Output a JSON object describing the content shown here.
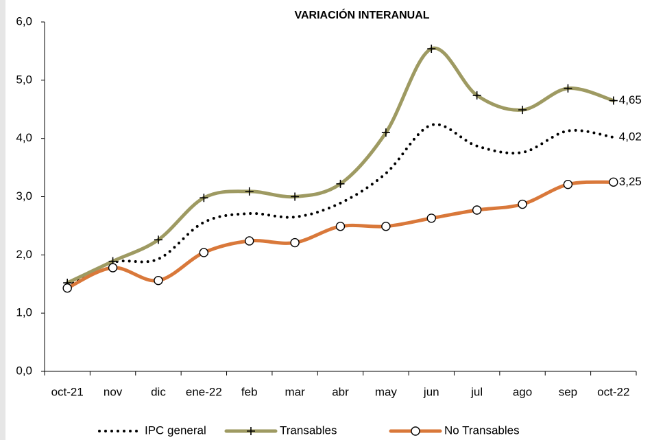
{
  "chart_data": {
    "type": "line",
    "title": "VARIACIÓN INTERANUAL",
    "categories": [
      "oct-21",
      "nov",
      "dic",
      "ene-22",
      "feb",
      "mar",
      "abr",
      "may",
      "jun",
      "jul",
      "ago",
      "sep",
      "oct-22"
    ],
    "series": [
      {
        "name": "IPC general",
        "color": "#000000",
        "style": "dotted",
        "values": [
          1.47,
          1.87,
          1.93,
          2.56,
          2.71,
          2.65,
          2.89,
          3.4,
          4.23,
          3.87,
          3.76,
          4.13,
          4.02
        ],
        "value_labels": [
          null,
          null,
          null,
          null,
          null,
          null,
          null,
          null,
          null,
          null,
          null,
          null,
          "4,02"
        ],
        "label_color": "#000000"
      },
      {
        "name": "Transables",
        "color": "#9e9a62",
        "marker": "plus",
        "values": [
          1.52,
          1.89,
          2.26,
          2.98,
          3.09,
          3.0,
          3.22,
          4.1,
          5.54,
          4.74,
          4.49,
          4.86,
          4.65
        ],
        "value_labels": [
          null,
          null,
          null,
          null,
          null,
          null,
          null,
          null,
          null,
          null,
          null,
          null,
          "4,65"
        ],
        "label_color": "#8c8c1a"
      },
      {
        "name": "No Transables",
        "color": "#d9783a",
        "marker": "circle",
        "values": [
          1.43,
          1.78,
          1.56,
          2.04,
          2.24,
          2.21,
          2.49,
          2.49,
          2.63,
          2.77,
          2.87,
          3.21,
          3.25
        ],
        "value_labels": [
          null,
          null,
          null,
          null,
          null,
          null,
          null,
          null,
          null,
          null,
          null,
          null,
          "3,25"
        ],
        "label_color": "#e8732a"
      }
    ],
    "ylim": [
      0,
      6
    ],
    "yticks": [
      {
        "value": 0,
        "label": "0,0"
      },
      {
        "value": 1,
        "label": "1,0"
      },
      {
        "value": 2,
        "label": "2,0"
      },
      {
        "value": 3,
        "label": "3,0"
      },
      {
        "value": 4,
        "label": "4,0"
      },
      {
        "value": 5,
        "label": "5,0"
      },
      {
        "value": 6,
        "label": "6,0"
      }
    ],
    "grid": false,
    "smooth": true,
    "legend": "bottom"
  }
}
